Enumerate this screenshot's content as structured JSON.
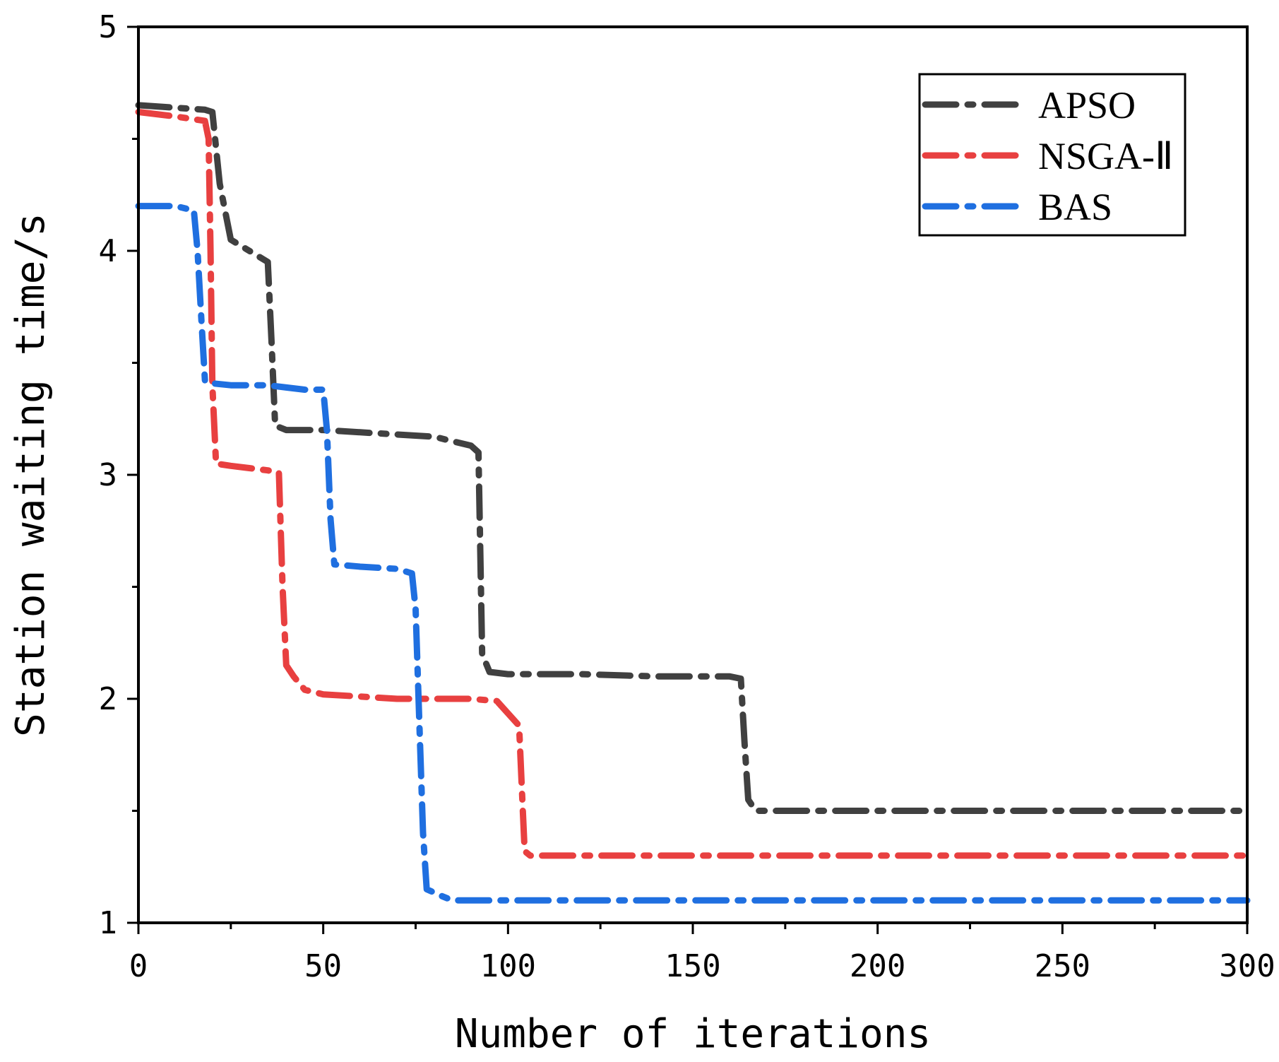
{
  "chart_data": {
    "type": "line",
    "title": "",
    "xlabel": "Number of iterations",
    "ylabel": "Station waiting time/s",
    "xlim": [
      0,
      300
    ],
    "ylim": [
      1,
      5
    ],
    "xticks": [
      0,
      50,
      100,
      150,
      200,
      250,
      300
    ],
    "yticks": [
      1,
      2,
      3,
      4,
      5
    ],
    "grid": false,
    "legend_position": "top-right",
    "line_style": "dash-dot",
    "series": [
      {
        "name": "APSO",
        "color": "#404040",
        "x": [
          0,
          18,
          20,
          22,
          25,
          30,
          35,
          36,
          37,
          40,
          50,
          60,
          70,
          80,
          90,
          92,
          93,
          95,
          100,
          120,
          140,
          160,
          163,
          164,
          165,
          167,
          170,
          200,
          250,
          300
        ],
        "y": [
          4.65,
          4.63,
          4.62,
          4.3,
          4.05,
          4.0,
          3.95,
          3.6,
          3.22,
          3.2,
          3.2,
          3.19,
          3.18,
          3.17,
          3.13,
          3.1,
          2.2,
          2.12,
          2.11,
          2.11,
          2.1,
          2.1,
          2.09,
          1.8,
          1.55,
          1.5,
          1.5,
          1.5,
          1.5,
          1.5
        ]
      },
      {
        "name": "NSGA-Ⅱ",
        "color": "#e84040",
        "x": [
          0,
          10,
          18,
          19,
          19.5,
          20,
          21,
          25,
          30,
          35,
          38,
          39,
          40,
          42,
          45,
          50,
          60,
          70,
          80,
          90,
          97,
          103,
          104,
          104.5,
          106,
          110,
          150,
          200,
          250,
          300
        ],
        "y": [
          4.62,
          4.6,
          4.58,
          4.5,
          4.0,
          3.4,
          3.05,
          3.04,
          3.03,
          3.02,
          3.01,
          2.5,
          2.15,
          2.1,
          2.04,
          2.02,
          2.01,
          2.0,
          2.0,
          2.0,
          1.99,
          1.88,
          1.5,
          1.32,
          1.3,
          1.3,
          1.3,
          1.3,
          1.3,
          1.3
        ]
      },
      {
        "name": "BAS",
        "color": "#1f6fe0",
        "x": [
          0,
          10,
          15,
          16,
          17,
          18,
          19,
          25,
          30,
          35,
          40,
          45,
          50,
          51,
          52,
          53,
          60,
          70,
          74,
          75,
          76,
          77,
          78,
          82,
          85,
          100,
          150,
          200,
          250,
          300
        ],
        "y": [
          4.2,
          4.2,
          4.18,
          4.0,
          3.7,
          3.42,
          3.41,
          3.4,
          3.4,
          3.4,
          3.39,
          3.38,
          3.38,
          3.2,
          2.8,
          2.6,
          2.59,
          2.58,
          2.56,
          2.4,
          1.9,
          1.4,
          1.15,
          1.12,
          1.1,
          1.1,
          1.1,
          1.1,
          1.1,
          1.1
        ]
      }
    ]
  }
}
